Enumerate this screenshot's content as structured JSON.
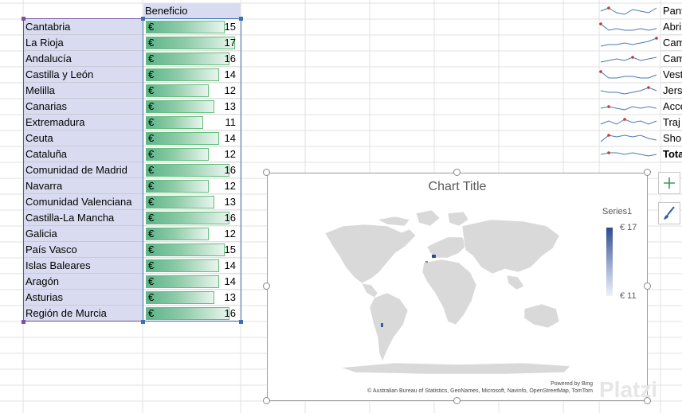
{
  "sheet": {
    "header_benefit": "Beneficio",
    "currency_symbol": "€",
    "rows": [
      {
        "region": "Cantabria",
        "value": "15"
      },
      {
        "region": "La Rioja",
        "value": "17"
      },
      {
        "region": "Andalucía",
        "value": "16"
      },
      {
        "region": "Castilla y León",
        "value": "14"
      },
      {
        "region": "Melilla",
        "value": "12"
      },
      {
        "region": "Canarias",
        "value": "13"
      },
      {
        "region": "Extremadura",
        "value": "11"
      },
      {
        "region": "Ceuta",
        "value": "14"
      },
      {
        "region": "Cataluña",
        "value": "12"
      },
      {
        "region": "Comunidad de Madrid",
        "value": "16"
      },
      {
        "region": "Navarra",
        "value": "12"
      },
      {
        "region": "Comunidad Valenciana",
        "value": "13"
      },
      {
        "region": "Castilla-La Mancha",
        "value": "16"
      },
      {
        "region": "Galicia",
        "value": "12"
      },
      {
        "region": "País Vasco",
        "value": "15"
      },
      {
        "region": "Islas Baleares",
        "value": "14"
      },
      {
        "region": "Aragón",
        "value": "14"
      },
      {
        "region": "Asturias",
        "value": "13"
      },
      {
        "region": "Región de Murcia",
        "value": "16"
      }
    ]
  },
  "products": [
    "Pant",
    "Abri",
    "Cam",
    "Cam",
    "Vest",
    "Jers",
    "Acce",
    "Traj",
    "Sho",
    "Tota"
  ],
  "chart": {
    "title": "Chart Title",
    "legend_title": "Series1",
    "legend_max": "€ 17",
    "legend_min": "€ 11",
    "powered_by": "Powered by Bing",
    "credits": "© Australian Bureau of Statistics, GeoNames, Microsoft, Navinfo, OpenStreetMap, TomTom"
  },
  "watermark": "Platzi",
  "colors": {
    "region_fill": "#d9dcf0",
    "databar": "#63BE7B",
    "selection": "#3a6fb0",
    "map_land": "#d9d9d9"
  }
}
